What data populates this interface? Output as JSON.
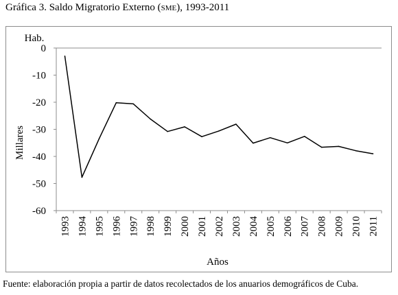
{
  "figure": {
    "title_prefix": "Gráfica 3. Saldo Migratorio Externo (",
    "title_abbr": "SME",
    "title_suffix": "), 1993-2011",
    "source": "Fuente: elaboración propia a partir de datos recolectados de los anuarios demográficos de Cuba."
  },
  "chart_data": {
    "type": "line",
    "title": "Gráfica 3. Saldo Migratorio Externo (SME), 1993-2011",
    "xlabel": "Años",
    "ylabel": "Millares",
    "unit_label": "Hab.",
    "ylim": [
      -60,
      0
    ],
    "yticks": [
      "0",
      "-10",
      "-20",
      "-30",
      "-40",
      "-50",
      "-60"
    ],
    "ytick_values": [
      0,
      -10,
      -20,
      -30,
      -40,
      -50,
      -60
    ],
    "grid": "top-line-only",
    "legend": "none",
    "line_color": "#000000",
    "categories": [
      "1993",
      "1994",
      "1995",
      "1996",
      "1997",
      "1998",
      "1999",
      "2000",
      "2001",
      "2002",
      "2003",
      "2004",
      "2005",
      "2006",
      "2007",
      "2008",
      "2009",
      "2010",
      "2011"
    ],
    "series": [
      {
        "values": [
          -3,
          -47.7,
          -33.5,
          -20.2,
          -20.6,
          -26.2,
          -30.8,
          -29.1,
          -32.7,
          -30.6,
          -28.1,
          -35.1,
          -33.1,
          -35,
          -32.6,
          -36.6,
          -36.3,
          -37.9,
          -39
        ]
      }
    ]
  }
}
